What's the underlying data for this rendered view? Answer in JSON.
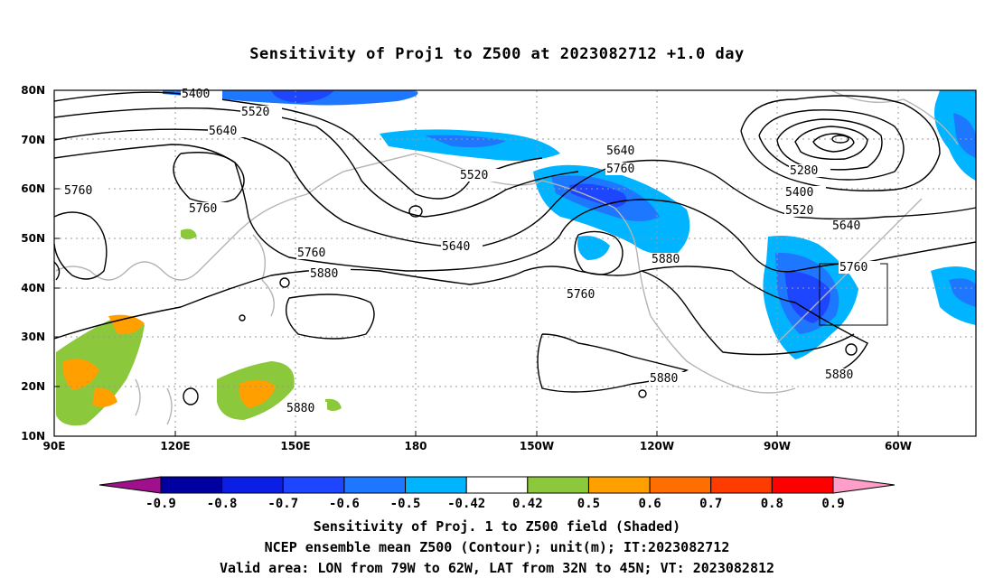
{
  "title": "Sensitivity of Proj1 to Z500 at 2023082712 +1.0 day",
  "map": {
    "lat_ticks": [
      "80N",
      "70N",
      "60N",
      "50N",
      "40N",
      "30N",
      "20N",
      "10N"
    ],
    "lon_ticks": [
      "90E",
      "120E",
      "150E",
      "180",
      "150W",
      "120W",
      "90W",
      "60W"
    ],
    "contour_labels": [
      "5400",
      "5520",
      "5640",
      "5760",
      "5760",
      "5520",
      "5640",
      "5760",
      "5880",
      "5760",
      "5880",
      "5640",
      "5760",
      "5280",
      "5400",
      "5520",
      "5640",
      "5760",
      "5880",
      "5880",
      "5880"
    ],
    "validation_box": {
      "lon": [
        "79W",
        "62W"
      ],
      "lat": [
        "32N",
        "45N"
      ]
    }
  },
  "colorbar": {
    "labels": [
      "-0.9",
      "-0.8",
      "-0.7",
      "-0.6",
      "-0.5",
      "-0.42",
      "0.42",
      "0.5",
      "0.6",
      "0.7",
      "0.8",
      "0.9"
    ],
    "colors": [
      "#a0108c",
      "#0000a0",
      "#0a1ee6",
      "#1e46ff",
      "#1e78ff",
      "#00b4ff",
      "#ffffff",
      "#8cc83c",
      "#ffa000",
      "#ff6e00",
      "#ff3c00",
      "#ff0000",
      "#ff9ec8"
    ]
  },
  "captions": {
    "line1": "Sensitivity of Proj. 1 to Z500 field (Shaded)",
    "line2": "NCEP ensemble mean Z500 (Contour); unit(m); IT:2023082712",
    "line3": "Valid area: LON from 79W to 62W, LAT from 32N to 45N; VT: 2023082812"
  }
}
